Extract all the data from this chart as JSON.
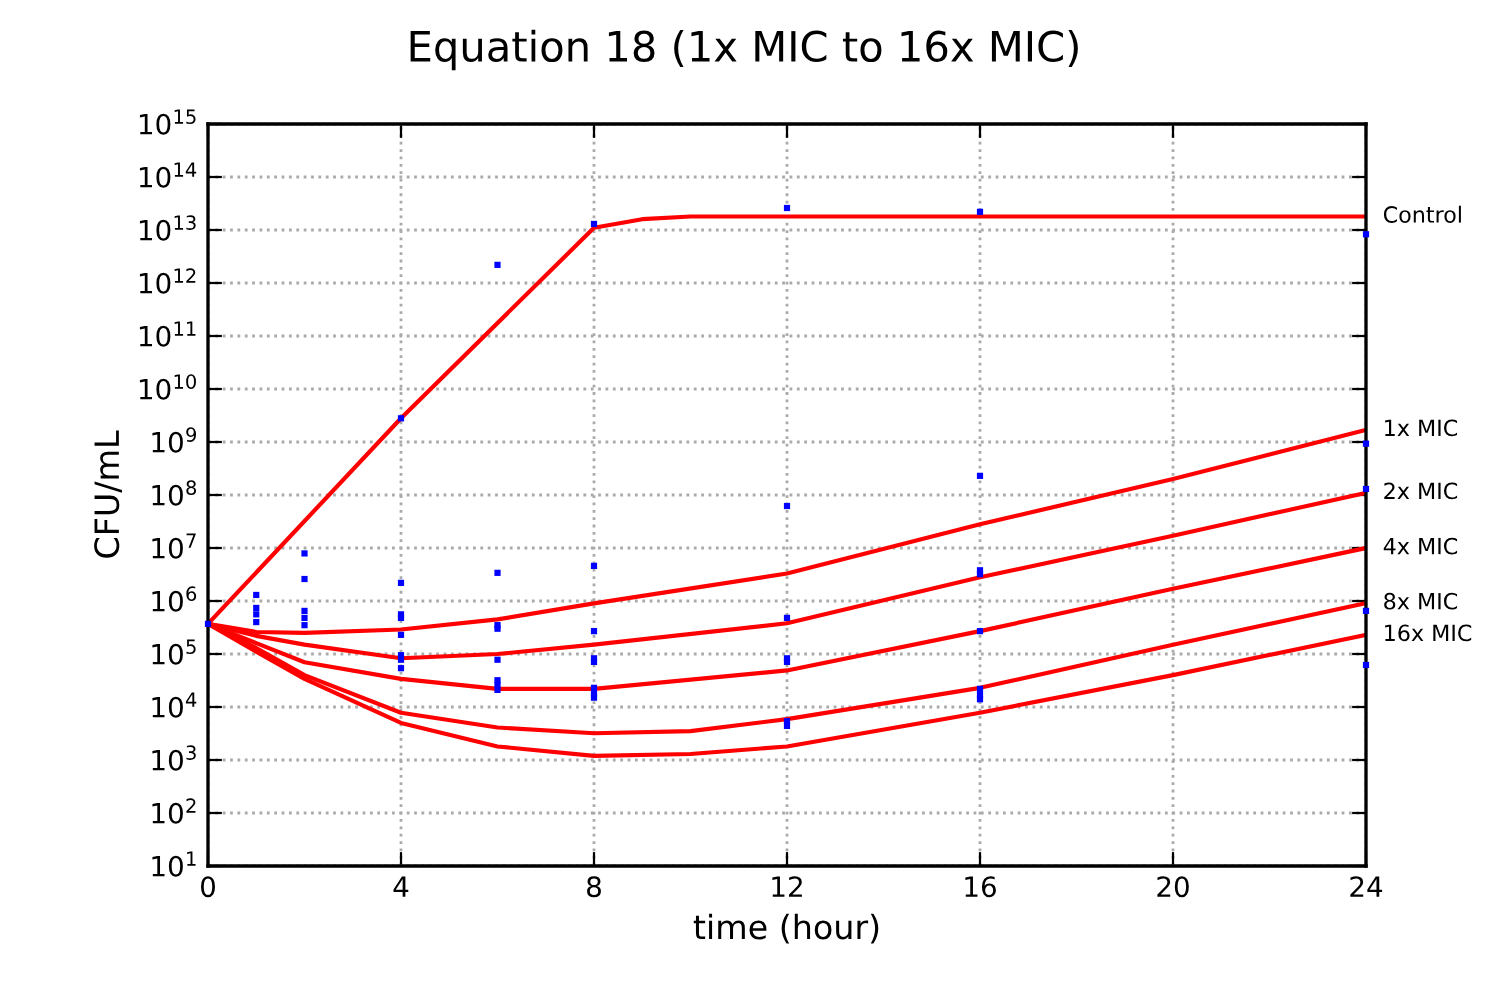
{
  "chart_data": {
    "type": "line",
    "title": "Equation 18 (1x MIC to 16x MIC)",
    "xlabel": "time (hour)",
    "ylabel": "CFU/mL",
    "log": "y",
    "grid": true,
    "marker": "none",
    "line_style": "solid",
    "xlim": [
      0,
      24
    ],
    "xticks": [
      0,
      4,
      8,
      12,
      16,
      20,
      24
    ],
    "ylim": [
      10,
      1000000000000000.0
    ],
    "yticks": [
      {
        "value": 10,
        "label": "10$^{1}$"
      },
      {
        "value": 100,
        "label": "10$^{2}$"
      },
      {
        "value": 1000,
        "label": "10$^{3}$"
      },
      {
        "value": 10000,
        "label": "10$^{4}$"
      },
      {
        "value": 100000,
        "label": "10$^{5}$"
      },
      {
        "value": 1000000,
        "label": "10$^{6}$"
      },
      {
        "value": 10000000,
        "label": "10$^{7}$"
      },
      {
        "value": 100000000,
        "label": "10$^{8}$"
      },
      {
        "value": 1000000000,
        "label": "10$^{9}$"
      },
      {
        "value": 10000000000.0,
        "label": "10$^{10}$"
      },
      {
        "value": 100000000000.0,
        "label": "10$^{11}$"
      },
      {
        "value": 1000000000000.0,
        "label": "10$^{12}$"
      },
      {
        "value": 10000000000000.0,
        "label": "10$^{13}$"
      },
      {
        "value": 100000000000000.0,
        "label": "10$^{14}$"
      },
      {
        "value": 1000000000000000.0,
        "label": "10$^{15}$"
      }
    ],
    "series": [
      {
        "name": "Control",
        "color": "#ff0000",
        "x": [
          0,
          4,
          8,
          9,
          10,
          24
        ],
        "values": [
          370000.0,
          2800000000.0,
          11000000000000.0,
          16000000000000.0,
          18000000000000.0,
          18000000000000.0
        ]
      },
      {
        "name": "1x MIC",
        "color": "#ff0000",
        "x": [
          0,
          1,
          2,
          4,
          6,
          8,
          12,
          16,
          20,
          24
        ],
        "values": [
          370000.0,
          260000.0,
          250000.0,
          290000.0,
          450000.0,
          900000.0,
          3300000.0,
          28000000.0,
          200000000.0,
          1700000000.0
        ]
      },
      {
        "name": "2x MIC",
        "color": "#ff0000",
        "x": [
          0,
          1,
          2,
          4,
          6,
          8,
          12,
          16,
          20,
          24
        ],
        "values": [
          370000.0,
          220000.0,
          150000.0,
          83000.0,
          100000.0,
          150000.0,
          380000.0,
          2800000.0,
          17000000.0,
          110000000.0
        ]
      },
      {
        "name": "4x MIC",
        "color": "#ff0000",
        "x": [
          0,
          1,
          2,
          4,
          6,
          8,
          12,
          16,
          20,
          24
        ],
        "values": [
          370000.0,
          160000.0,
          70000.0,
          34000.0,
          22000.0,
          22000.0,
          49000.0,
          270000.0,
          1700000.0,
          10000000.0
        ]
      },
      {
        "name": "8x MIC",
        "color": "#ff0000",
        "x": [
          0,
          1,
          2,
          4,
          6,
          8,
          10,
          12,
          16,
          20,
          24
        ],
        "values": [
          370000.0,
          130000.0,
          40000.0,
          7800.0,
          4100.0,
          3200.0,
          3500.0,
          5900.0,
          23000.0,
          150000.0,
          910000.0
        ]
      },
      {
        "name": "16x MIC",
        "color": "#ff0000",
        "x": [
          0,
          1,
          2,
          4,
          6,
          8,
          10,
          12,
          16,
          20,
          24
        ],
        "values": [
          370000.0,
          110000.0,
          34000.0,
          5000.0,
          1800.0,
          1200.0,
          1300.0,
          1800.0,
          7800.0,
          40000.0,
          230000.0
        ]
      },
      {
        "type": "scatter",
        "marker": "square",
        "color": "#0000ff",
        "x": [
          0,
          1,
          1,
          1,
          1,
          2,
          2,
          2,
          2,
          2,
          4,
          4,
          4,
          4,
          4,
          4,
          4,
          4,
          6,
          6,
          6,
          6,
          6,
          6,
          6,
          6,
          8,
          8,
          8,
          8,
          8,
          8,
          8,
          8,
          12,
          12,
          12,
          12,
          12,
          12,
          12,
          16,
          16,
          16,
          16,
          16,
          16,
          16,
          16,
          24,
          24,
          24,
          24,
          24
        ],
        "values": [
          370000.0,
          1300000.0,
          740000.0,
          560000.0,
          400000.0,
          7900000.0,
          2600000.0,
          650000.0,
          480000.0,
          350000.0,
          2800000000.0,
          2200000.0,
          560000.0,
          480000.0,
          230000.0,
          95000.0,
          78000.0,
          54000.0,
          2200000000000.0,
          3400000.0,
          350000.0,
          300000.0,
          78000.0,
          32000.0,
          26000.0,
          21000.0,
          13000000000000.0,
          4600000.0,
          270000.0,
          83000.0,
          71000.0,
          23000.0,
          18000.0,
          15000.0,
          26000000000000.0,
          62000000.0,
          480000.0,
          83000.0,
          71000.0,
          5400.0,
          4400.0,
          22000000000000.0,
          230000000.0,
          3800000.0,
          3200000.0,
          270000.0,
          22000.0,
          17000.0,
          14000.0,
          8300000000000.0,
          930000000.0,
          130000000.0,
          650000.0,
          62000.0
        ]
      }
    ]
  }
}
